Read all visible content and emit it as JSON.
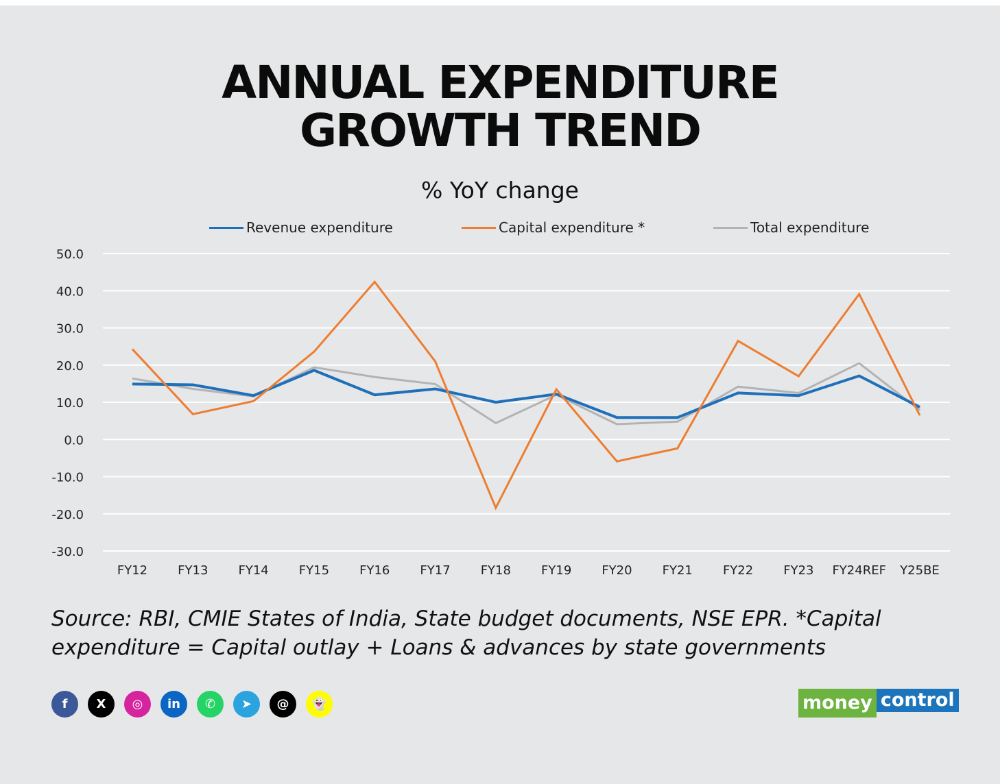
{
  "title_line1": "ANNUAL EXPENDITURE",
  "title_line2": "GROWTH TREND",
  "chart_data": {
    "type": "line",
    "title": "ANNUAL EXPENDITURE GROWTH TREND",
    "subtitle": "% YoY change",
    "categories": [
      "FY12",
      "FY13",
      "FY14",
      "FY15",
      "FY16",
      "FY17",
      "FY18",
      "FY19",
      "FY20",
      "FY21",
      "FY22",
      "FY23",
      "FY24REF",
      "Y25BE"
    ],
    "yticks": [
      "50.0",
      "40.0",
      "30.0",
      "20.0",
      "10.0",
      "0.0",
      "-10.0",
      "-20.0",
      "-30.0"
    ],
    "ylim": [
      -30,
      50
    ],
    "grid": true,
    "legend_position": "top",
    "series": [
      {
        "name": "Revenue expenditure",
        "color": "#1f6fba",
        "values": [
          14.9,
          14.7,
          11.8,
          18.6,
          12.0,
          13.6,
          10.0,
          12.2,
          5.9,
          5.9,
          12.5,
          11.8,
          17.1,
          8.7
        ]
      },
      {
        "name": "Capital expenditure *",
        "color": "#ed7d31",
        "values": [
          24.3,
          6.8,
          10.3,
          23.6,
          42.4,
          21.0,
          -18.4,
          13.5,
          -5.9,
          -2.4,
          26.5,
          17.0,
          39.1,
          6.5
        ]
      },
      {
        "name": "Total expenditure",
        "color": "#b3b3b3",
        "values": [
          16.4,
          13.6,
          11.6,
          19.4,
          16.8,
          14.9,
          4.4,
          12.0,
          4.1,
          4.8,
          14.2,
          12.5,
          20.5,
          7.9
        ]
      }
    ]
  },
  "source": "Source: RBI, CMIE States of India, State budget documents, NSE EPR. *Capital expenditure = Capital outlay + Loans & advances by state governments",
  "social": [
    {
      "icon": "facebook-icon",
      "glyph": "f",
      "color": "#3b5998"
    },
    {
      "icon": "x-icon",
      "glyph": "X",
      "color": "#000000"
    },
    {
      "icon": "instagram-icon",
      "glyph": "◎",
      "color": "#d6249f"
    },
    {
      "icon": "linkedin-icon",
      "glyph": "in",
      "color": "#0a66c2"
    },
    {
      "icon": "whatsapp-icon",
      "glyph": "✆",
      "color": "#25d366"
    },
    {
      "icon": "telegram-icon",
      "glyph": "➤",
      "color": "#2aa3de"
    },
    {
      "icon": "threads-icon",
      "glyph": "@",
      "color": "#000000"
    },
    {
      "icon": "snapchat-icon",
      "glyph": "👻",
      "color": "#fffc00"
    }
  ],
  "logo": {
    "part1": "money",
    "part2": "control"
  }
}
